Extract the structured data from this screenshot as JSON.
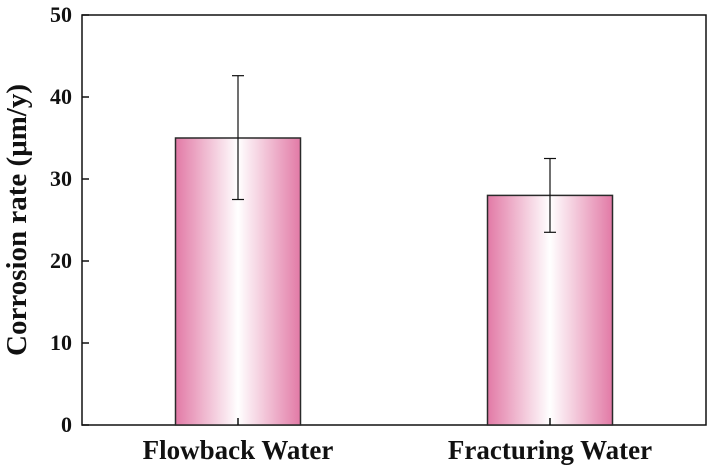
{
  "chart_data": {
    "type": "bar",
    "title": "",
    "xlabel": "",
    "ylabel": "Corrosion rate (μm/y)",
    "categories": [
      "Flowback Water",
      "Fracturing Water"
    ],
    "values": [
      35.0,
      28.0
    ],
    "error_low": [
      27.5,
      23.5
    ],
    "error_high": [
      42.6,
      32.5
    ],
    "ylim": [
      0,
      50
    ],
    "yticks": [
      0,
      10,
      20,
      30,
      40,
      50
    ],
    "grid": false,
    "legend": "none",
    "bar_color_edge": "#e27aa6",
    "bar_color_center": "#ffffff",
    "bar_outline": "#2a2a2a"
  }
}
